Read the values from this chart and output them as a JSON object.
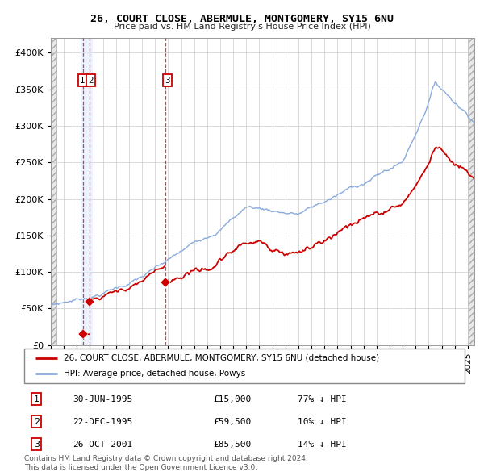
{
  "title1": "26, COURT CLOSE, ABERMULE, MONTGOMERY, SY15 6NU",
  "title2": "Price paid vs. HM Land Registry's House Price Index (HPI)",
  "legend_property": "26, COURT CLOSE, ABERMULE, MONTGOMERY, SY15 6NU (detached house)",
  "legend_hpi": "HPI: Average price, detached house, Powys",
  "property_color": "#cc0000",
  "hpi_color": "#88aadd",
  "transactions": [
    {
      "id": 1,
      "date_num": 1995.49,
      "price": 15000,
      "desc": "30-JUN-1995",
      "amount": "£15,000",
      "pct": "77% ↓ HPI"
    },
    {
      "id": 2,
      "date_num": 1995.98,
      "price": 59500,
      "desc": "22-DEC-1995",
      "amount": "£59,500",
      "pct": "10% ↓ HPI"
    },
    {
      "id": 3,
      "date_num": 2001.82,
      "price": 85500,
      "desc": "26-OCT-2001",
      "amount": "£85,500",
      "pct": "14% ↓ HPI"
    }
  ],
  "footnote1": "Contains HM Land Registry data © Crown copyright and database right 2024.",
  "footnote2": "This data is licensed under the Open Government Licence v3.0.",
  "ylim": [
    0,
    420000
  ],
  "xlim_start": 1993.0,
  "xlim_end": 2025.5,
  "grid_color": "#cccccc",
  "highlight_color": "#ddeeff",
  "hatch_color": "#e0e0e0"
}
